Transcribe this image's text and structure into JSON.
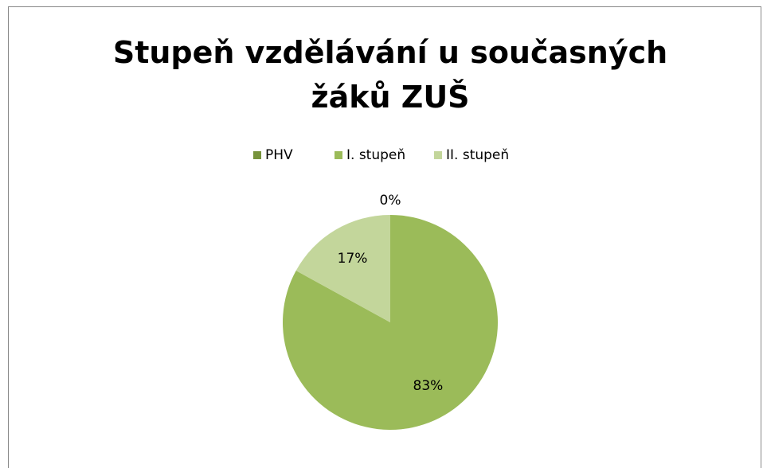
{
  "chart_data": {
    "type": "pie",
    "title": "Stupeň vzdělávání u současných žáků ZUŠ",
    "categories": [
      "PHV",
      "I. stupeň",
      "II. stupeň"
    ],
    "values": [
      0,
      83,
      17
    ],
    "value_labels": [
      "0%",
      "83%",
      "17%"
    ],
    "colors": [
      "#77933c",
      "#9bbb59",
      "#c3d69b"
    ],
    "legend": "top"
  }
}
